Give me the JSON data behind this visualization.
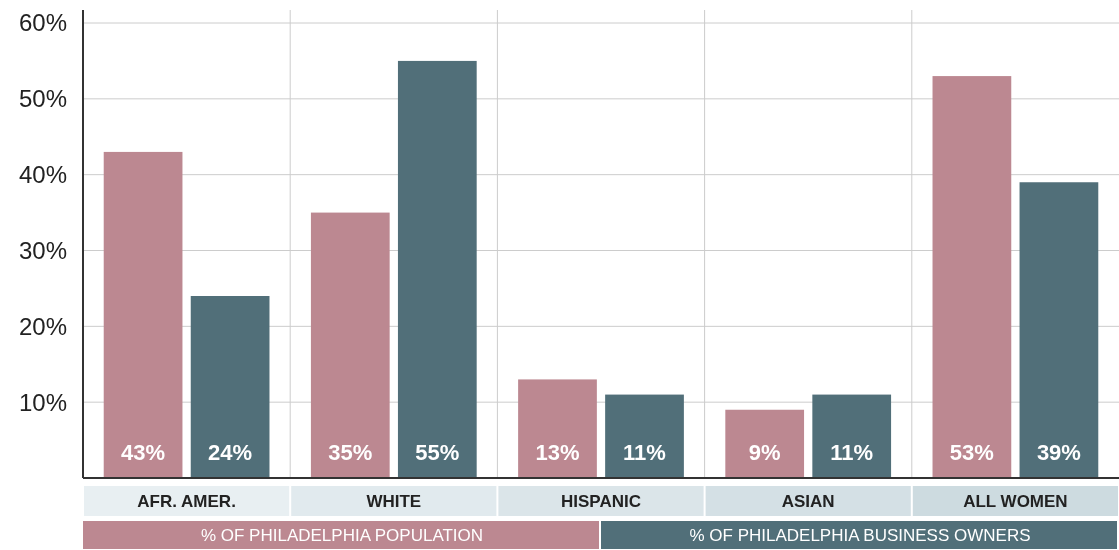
{
  "chart_data": {
    "type": "bar",
    "categories": [
      "AFR. AMER.",
      "WHITE",
      "HISPANIC",
      "ASIAN",
      "ALL WOMEN"
    ],
    "series": [
      {
        "name": "% OF PHILADELPHIA POPULATION",
        "color": "#bc8891",
        "values": [
          43,
          35,
          13,
          9,
          53
        ],
        "value_labels": [
          "43%",
          "35%",
          "13%",
          "9%",
          "53%"
        ]
      },
      {
        "name": "% OF PHILADELPHIA BUSINESS OWNERS",
        "color": "#516f79",
        "values": [
          24,
          55,
          11,
          11,
          39
        ],
        "value_labels": [
          "24%",
          "55%",
          "11%",
          "11%",
          "39%"
        ]
      }
    ],
    "ylim": [
      0,
      60
    ],
    "yticks": [
      {
        "value": 0,
        "label": null
      },
      {
        "value": 10,
        "label": "10%"
      },
      {
        "value": 20,
        "label": "20%"
      },
      {
        "value": 30,
        "label": "30%"
      },
      {
        "value": 40,
        "label": "40%"
      },
      {
        "value": 50,
        "label": "50%"
      },
      {
        "value": 60,
        "label": "60%"
      }
    ],
    "grid": true,
    "legend": "bottom"
  }
}
